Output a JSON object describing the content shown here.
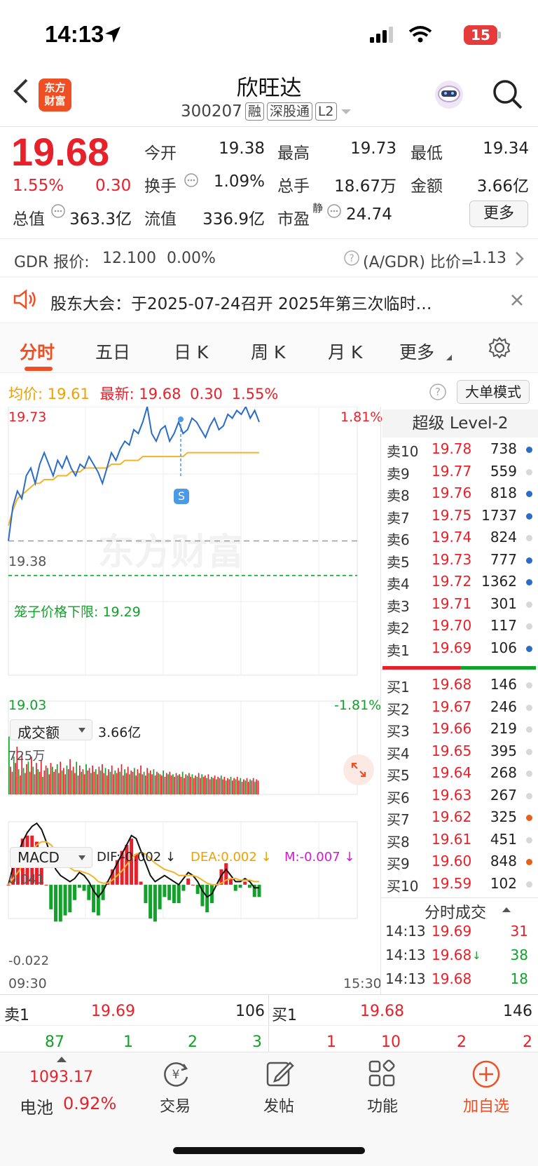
{
  "status_bar": {
    "time": "14:13",
    "battery": "15"
  },
  "header": {
    "title": "欣旺达",
    "code": "300207",
    "tags": [
      "融",
      "深股通",
      "L2"
    ],
    "logo_text": "东方财富"
  },
  "quote": {
    "price": "19.68",
    "change_pct": "1.55%",
    "change_amt": "0.30",
    "fields": [
      {
        "label": "今开",
        "value": "19.38",
        "color": "#222222"
      },
      {
        "label": "最高",
        "value": "19.73",
        "color": "#e8202a"
      },
      {
        "label": "最低",
        "value": "19.34",
        "color": "#12a12a"
      },
      {
        "label": "换手",
        "value": "1.09%",
        "color": "#222222"
      },
      {
        "label": "总手",
        "value": "18.67万",
        "color": "#222222"
      },
      {
        "label": "金额",
        "value": "3.66亿",
        "color": "#222222"
      },
      {
        "label": "总值",
        "value": "363.3亿",
        "color": "#222222"
      },
      {
        "label": "流值",
        "value": "336.9亿",
        "color": "#222222"
      },
      {
        "label": "市盈",
        "value": "24.74",
        "color": "#222222"
      }
    ],
    "pe_sup": "静",
    "more_label": "更多"
  },
  "gdr": {
    "label": "GDR 报价:",
    "price": "12.100",
    "pct": "0.00%",
    "ratio_label": "(A/GDR) 比价=",
    "ratio": "1.13"
  },
  "notice": {
    "text": "股东大会：于2025-07-24召开 2025年第三次临时…"
  },
  "tabs": [
    {
      "label": "分时",
      "active": true
    },
    {
      "label": "五日",
      "active": false
    },
    {
      "label": "日 K",
      "active": false
    },
    {
      "label": "周 K",
      "active": false
    },
    {
      "label": "月 K",
      "active": false
    },
    {
      "label": "更多",
      "active": false
    }
  ],
  "chart_info": {
    "avg_label": "均价:",
    "avg": "19.61",
    "latest_label": "最新:",
    "latest": "19.68",
    "chg": "0.30",
    "pct": "1.55%",
    "big_order_label": "大单模式",
    "watermark": "东方财富",
    "cage_label": "笼子价格下限: 19.29",
    "signal": "S"
  },
  "chart_data": [
    {
      "type": "line",
      "title": "",
      "y_labels": {
        "top": "19.73",
        "mid": "19.38",
        "bottom": "19.03"
      },
      "pct_labels": {
        "top": "1.81%",
        "bottom": "-1.81%"
      },
      "ylim": [
        19.03,
        19.73
      ],
      "reference": 19.38,
      "cage_lower": 19.29,
      "x_labels": [
        "09:30",
        "15:30"
      ],
      "series": [
        {
          "name": "最新",
          "color": "#2a6cc8",
          "values": [
            19.38,
            19.47,
            19.51,
            19.49,
            19.55,
            19.57,
            19.53,
            19.58,
            19.61,
            19.58,
            19.55,
            19.59,
            19.57,
            19.6,
            19.57,
            19.55,
            19.58,
            19.57,
            19.6,
            19.58,
            19.56,
            19.53,
            19.57,
            19.61,
            19.59,
            19.62,
            19.64,
            19.63,
            19.67,
            19.66,
            19.69,
            19.73,
            19.66,
            19.64,
            19.67,
            19.68,
            19.64,
            19.66,
            19.69,
            19.66,
            19.67,
            19.7,
            19.69,
            19.67,
            19.65,
            19.68,
            19.7,
            19.67,
            19.68,
            19.71,
            19.7,
            19.72,
            19.71,
            19.73,
            19.7,
            19.72,
            19.69
          ]
        },
        {
          "name": "均价",
          "color": "#f5b32a",
          "values": [
            19.42,
            19.46,
            19.49,
            19.5,
            19.51,
            19.52,
            19.53,
            19.53,
            19.54,
            19.54,
            19.54,
            19.55,
            19.55,
            19.55,
            19.56,
            19.56,
            19.56,
            19.57,
            19.57,
            19.57,
            19.57,
            19.57,
            19.57,
            19.58,
            19.58,
            19.58,
            19.59,
            19.59,
            19.59,
            19.59,
            19.6,
            19.6,
            19.6,
            19.6,
            19.6,
            19.6,
            19.6,
            19.6,
            19.6,
            19.6,
            19.61,
            19.61,
            19.61,
            19.61,
            19.61,
            19.61,
            19.61,
            19.61,
            19.61,
            19.61,
            19.61,
            19.61,
            19.61,
            19.61,
            19.61,
            19.61,
            19.61
          ]
        }
      ]
    },
    {
      "type": "bar",
      "title": "成交额",
      "total": "3.66亿",
      "max_label": "725万",
      "ylim": [
        0,
        725
      ],
      "values": [
        460,
        220,
        180,
        300,
        250,
        380,
        200,
        150,
        320,
        210,
        170,
        240,
        260,
        180,
        300,
        220,
        160,
        250,
        200,
        180,
        270,
        140,
        190,
        230,
        210,
        160,
        250,
        220,
        180,
        200,
        240,
        170,
        260,
        190,
        210,
        160,
        230,
        200,
        280,
        190,
        220,
        170,
        260,
        150,
        230,
        180,
        200,
        160,
        240,
        190,
        210,
        170,
        230,
        180,
        200,
        160,
        220,
        190,
        240,
        170,
        210,
        150,
        200,
        180,
        230,
        160,
        190,
        170,
        210,
        180,
        240,
        150,
        200,
        170,
        220,
        160,
        190,
        180,
        210,
        150,
        200,
        170,
        230,
        160,
        180,
        150,
        210,
        170,
        190,
        160,
        200,
        150,
        180,
        170,
        160,
        150,
        190,
        140,
        170,
        160,
        180,
        150,
        160,
        140,
        170,
        150,
        160,
        140,
        180,
        130,
        160,
        150,
        170,
        140,
        160,
        130,
        150,
        140,
        170,
        130,
        160,
        140,
        150,
        130,
        160,
        120,
        140,
        130,
        150,
        120,
        140,
        130,
        150,
        120,
        140,
        110,
        130,
        120,
        140,
        110,
        130,
        120,
        140,
        110,
        130,
        100,
        120,
        110,
        130,
        100,
        120,
        110,
        130,
        100,
        120,
        110
      ],
      "colors": [
        "#e8202a",
        "#12a12a"
      ]
    },
    {
      "type": "line",
      "title": "MACD",
      "dif_label": "DIF:-0.002 ↓",
      "dea_label": "DEA:0.002 ↓",
      "m_label": "M:-0.007 ↓",
      "ylim": [
        -0.022,
        0.041
      ],
      "series": [
        {
          "name": "DIF",
          "color": "#111111",
          "values": [
            0.0,
            0.012,
            0.02,
            0.028,
            0.034,
            0.038,
            0.04,
            0.036,
            0.028,
            0.018,
            0.01,
            0.006,
            0.004,
            0.002,
            0.004,
            0.008,
            0.006,
            0.002,
            -0.004,
            -0.008,
            -0.004,
            0.002,
            0.008,
            0.014,
            0.02,
            0.026,
            0.032,
            0.03,
            0.022,
            0.014,
            0.006,
            0.002,
            0.004,
            0.006,
            0.004,
            0.002,
            0.0,
            0.004,
            0.008,
            0.006,
            0.002,
            -0.004,
            -0.008,
            -0.006,
            0.0,
            0.006,
            0.01,
            0.006,
            0.002,
            0.002,
            0.004,
            0.002,
            -0.002,
            -0.002
          ]
        },
        {
          "name": "DEA",
          "color": "#f5b32a",
          "values": [
            0.0,
            0.004,
            0.008,
            0.013,
            0.018,
            0.022,
            0.026,
            0.028,
            0.028,
            0.026,
            0.022,
            0.018,
            0.014,
            0.011,
            0.009,
            0.009,
            0.008,
            0.007,
            0.005,
            0.002,
            0.001,
            0.001,
            0.003,
            0.006,
            0.009,
            0.013,
            0.017,
            0.02,
            0.021,
            0.02,
            0.017,
            0.014,
            0.012,
            0.01,
            0.009,
            0.008,
            0.006,
            0.006,
            0.006,
            0.006,
            0.005,
            0.003,
            0.001,
            0.0,
            0.0,
            0.001,
            0.003,
            0.004,
            0.004,
            0.003,
            0.003,
            0.003,
            0.002,
            0.002
          ]
        }
      ]
    }
  ],
  "level2": {
    "title": "超级 Level-2",
    "asks": [
      {
        "label": "卖10",
        "price": "19.78",
        "vol": "738",
        "dot": "#2a6cc8"
      },
      {
        "label": "卖9",
        "price": "19.77",
        "vol": "559",
        "dot": "#d8d8d8"
      },
      {
        "label": "卖8",
        "price": "19.76",
        "vol": "818",
        "dot": "#2a6cc8"
      },
      {
        "label": "卖7",
        "price": "19.75",
        "vol": "1737",
        "dot": "#2a6cc8"
      },
      {
        "label": "卖6",
        "price": "19.74",
        "vol": "824",
        "dot": "#d8d8d8"
      },
      {
        "label": "卖5",
        "price": "19.73",
        "vol": "777",
        "dot": "#2a6cc8"
      },
      {
        "label": "卖4",
        "price": "19.72",
        "vol": "1362",
        "dot": "#2a6cc8"
      },
      {
        "label": "卖3",
        "price": "19.71",
        "vol": "301",
        "dot": "#d8d8d8"
      },
      {
        "label": "卖2",
        "price": "19.70",
        "vol": "117",
        "dot": "#d8d8d8"
      },
      {
        "label": "卖1",
        "price": "19.69",
        "vol": "106",
        "dot": "#2a6cc8"
      }
    ],
    "bids": [
      {
        "label": "买1",
        "price": "19.68",
        "vol": "146",
        "dot": "#d8d8d8"
      },
      {
        "label": "买2",
        "price": "19.67",
        "vol": "246",
        "dot": "#d8d8d8"
      },
      {
        "label": "买3",
        "price": "19.66",
        "vol": "219",
        "dot": "#d8d8d8"
      },
      {
        "label": "买4",
        "price": "19.65",
        "vol": "395",
        "dot": "#d8d8d8"
      },
      {
        "label": "买5",
        "price": "19.64",
        "vol": "268",
        "dot": "#d8d8d8"
      },
      {
        "label": "买6",
        "price": "19.63",
        "vol": "267",
        "dot": "#d8d8d8"
      },
      {
        "label": "买7",
        "price": "19.62",
        "vol": "325",
        "dot": "#e8601a"
      },
      {
        "label": "买8",
        "price": "19.61",
        "vol": "451",
        "dot": "#d8d8d8"
      },
      {
        "label": "买9",
        "price": "19.60",
        "vol": "848",
        "dot": "#e8601a"
      },
      {
        "label": "买10",
        "price": "19.59",
        "vol": "102",
        "dot": "#d8d8d8"
      }
    ],
    "ticks_title": "分时成交",
    "ticks": [
      {
        "time": "14:13",
        "price": "19.69",
        "arrow": "",
        "vol": "31",
        "vol_color": "#e8202a"
      },
      {
        "time": "14:13",
        "price": "19.68",
        "arrow": "↓",
        "vol": "38",
        "vol_color": "#12a12a"
      },
      {
        "time": "14:13",
        "price": "19.68",
        "arrow": "",
        "vol": "18",
        "vol_color": "#12a12a"
      }
    ]
  },
  "bottom_quote": {
    "ask_label": "卖1",
    "ask_price": "19.69",
    "ask_vol": "106",
    "bid_label": "买1",
    "bid_price": "19.68",
    "bid_vol": "146",
    "ask_queue": [
      "87",
      "1",
      "2",
      "3"
    ],
    "bid_queue": [
      "1",
      "10",
      "2",
      "2"
    ]
  },
  "bottom_nav": {
    "index_value": "1093.17",
    "index_name": "电池",
    "index_pct": "0.92%",
    "items": [
      {
        "label": "交易",
        "icon": "yen-exchange-icon"
      },
      {
        "label": "发帖",
        "icon": "edit-icon"
      },
      {
        "label": "功能",
        "icon": "grid-icon"
      },
      {
        "label": "加自选",
        "icon": "add-circle-icon"
      }
    ]
  }
}
